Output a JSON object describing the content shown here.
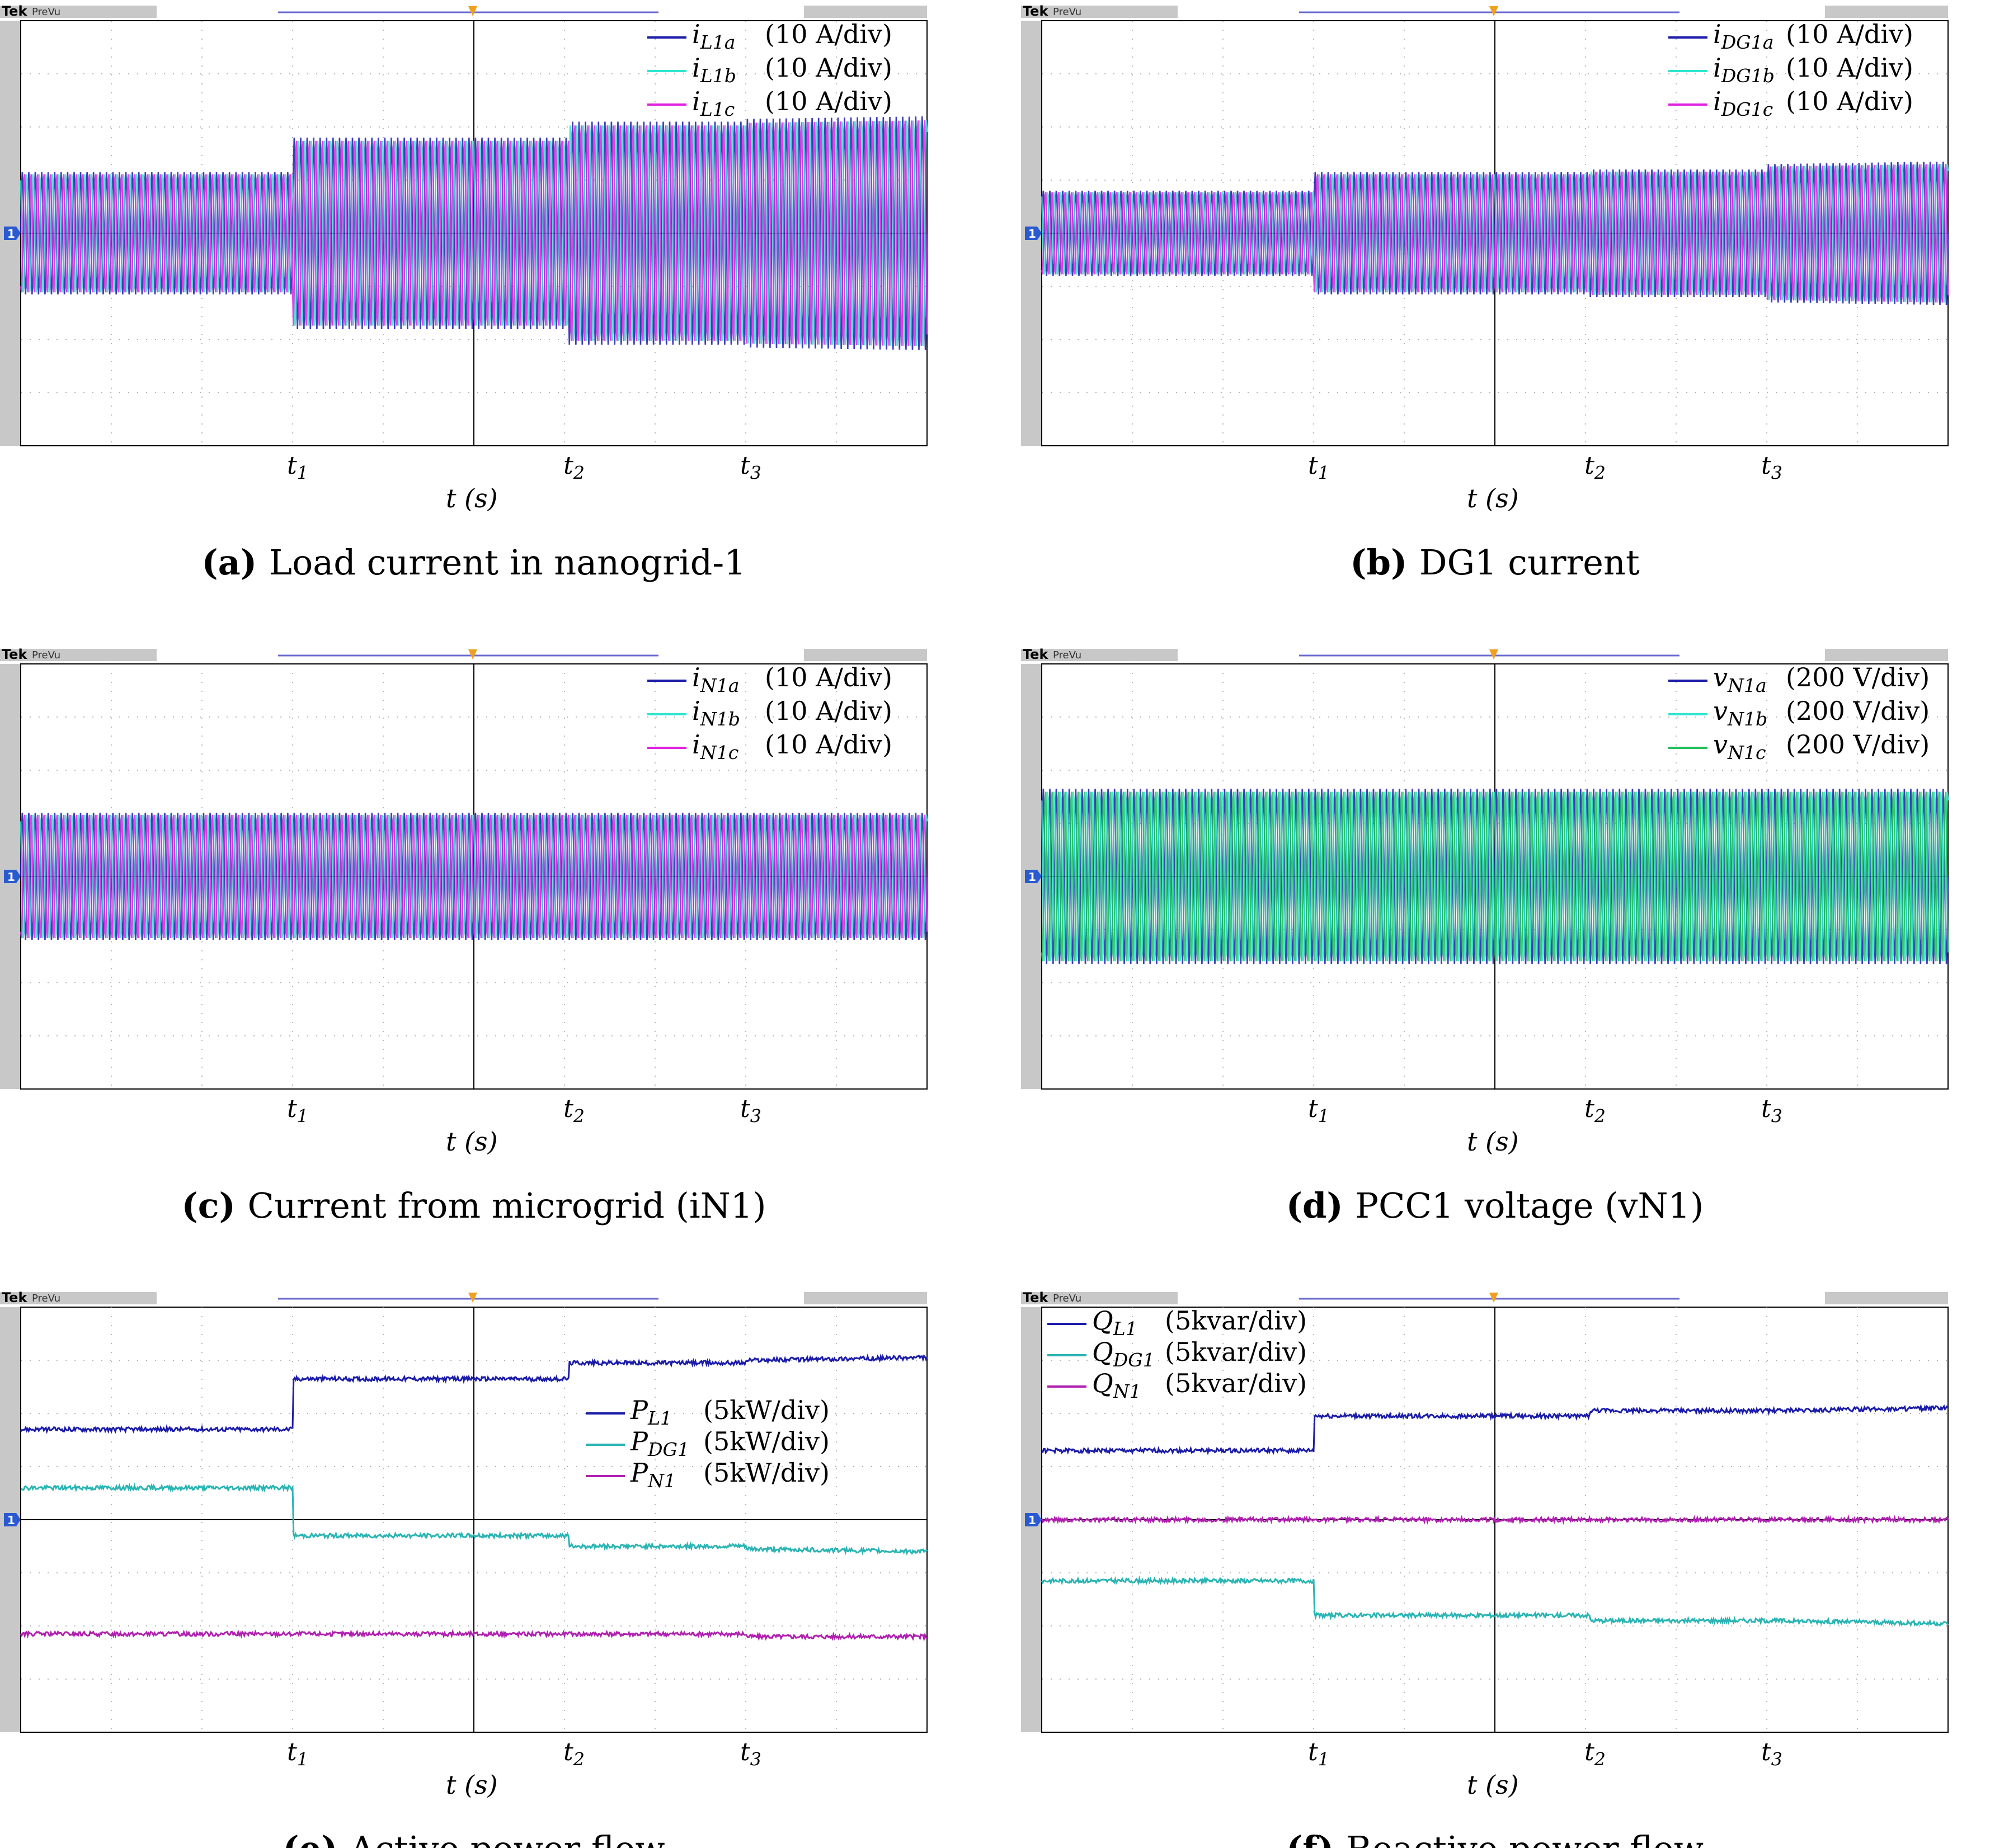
{
  "panels": [
    {
      "id": "a",
      "scope_brand": "Tek",
      "scope_mode": "PreVu",
      "caption_letter": "(a)",
      "caption_text": "Load current in nanogrid-1",
      "xlabel": "t (s)",
      "ticks": [
        "t1",
        "t2",
        "t3"
      ],
      "ground_marker": "1",
      "legend": [
        {
          "label": "iL1a",
          "scale": "(10 A/div)",
          "color": "#1c1caa"
        },
        {
          "label": "iL1b",
          "scale": "(10 A/div)",
          "color": "#2ee6d0"
        },
        {
          "label": "iL1c",
          "scale": "(10 A/div)",
          "color": "#e022e0"
        }
      ]
    },
    {
      "id": "b",
      "scope_brand": "Tek",
      "scope_mode": "PreVu",
      "caption_letter": "(b)",
      "caption_text": "DG1 current",
      "xlabel": "t (s)",
      "ticks": [
        "t1",
        "t2",
        "t3"
      ],
      "ground_marker": "1",
      "legend": [
        {
          "label": "iDG1a",
          "scale": "(10 A/div)",
          "color": "#1c1caa"
        },
        {
          "label": "iDG1b",
          "scale": "(10 A/div)",
          "color": "#2ee6d0"
        },
        {
          "label": "iDG1c",
          "scale": "(10 A/div)",
          "color": "#e022e0"
        }
      ]
    },
    {
      "id": "c",
      "scope_brand": "Tek",
      "scope_mode": "PreVu",
      "caption_letter": "(c)",
      "caption_text": "Current from microgrid (iN1)",
      "xlabel": "t (s)",
      "ticks": [
        "t1",
        "t2",
        "t3"
      ],
      "ground_marker": "1",
      "legend": [
        {
          "label": "iN1a",
          "scale": "(10 A/div)",
          "color": "#1c1caa"
        },
        {
          "label": "iN1b",
          "scale": "(10 A/div)",
          "color": "#2ee6d0"
        },
        {
          "label": "iN1c",
          "scale": "(10 A/div)",
          "color": "#e022e0"
        }
      ]
    },
    {
      "id": "d",
      "scope_brand": "Tek",
      "scope_mode": "PreVu",
      "caption_letter": "(d)",
      "caption_text": "PCC1 voltage (vN1)",
      "xlabel": "t (s)",
      "ticks": [
        "t1",
        "t2",
        "t3"
      ],
      "ground_marker": "1",
      "legend": [
        {
          "label": "vN1a",
          "scale": "(200 V/div)",
          "color": "#1c1caa"
        },
        {
          "label": "vN1b",
          "scale": "(200 V/div)",
          "color": "#2ee6d0"
        },
        {
          "label": "vN1c",
          "scale": "(200 V/div)",
          "color": "#22c05a"
        }
      ]
    },
    {
      "id": "e",
      "scope_brand": "Tek",
      "scope_mode": "PreVu",
      "caption_letter": "(e)",
      "caption_text": "Active power flow",
      "xlabel": "t (s)",
      "ticks": [
        "t1",
        "t2",
        "t3"
      ],
      "ground_marker": "1",
      "legend": [
        {
          "label": "PL1",
          "scale": "(5kW/div)",
          "color": "#1c1caa"
        },
        {
          "label": "PDG1",
          "scale": "(5kW/div)",
          "color": "#2ab4b4"
        },
        {
          "label": "PN1",
          "scale": "(5kW/div)",
          "color": "#b020b0"
        }
      ]
    },
    {
      "id": "f",
      "scope_brand": "Tek",
      "scope_mode": "PreVu",
      "caption_letter": "(f)",
      "caption_text": "Reactive power flow",
      "xlabel": "t (s)",
      "ticks": [
        "t1",
        "t2",
        "t3"
      ],
      "ground_marker": "1",
      "legend": [
        {
          "label": "QL1",
          "scale": "(5kvar/div)",
          "color": "#1c1caa"
        },
        {
          "label": "QDG1",
          "scale": "(5kvar/div)",
          "color": "#2ab4b4"
        },
        {
          "label": "QN1",
          "scale": "(5kvar/div)",
          "color": "#b020b0"
        }
      ]
    }
  ],
  "chart_data": [
    {
      "panel": "a",
      "type": "line",
      "x_unit": "div",
      "y_unit": "div",
      "xlim": [
        0,
        10
      ],
      "ylim": [
        -4,
        4
      ],
      "grid": true,
      "legend_position": "top-right",
      "events": {
        "t1": 3.0,
        "t2": 6.05,
        "t3": 8.0
      },
      "series": [
        {
          "name": "iL1a",
          "style": "sine-envelope",
          "phase": 0,
          "envelope": {
            "x": [
              0,
              3.0,
              3.0,
              6.05,
              6.05,
              8.0,
              8.0,
              10
            ],
            "amp": [
              1.15,
              1.15,
              1.8,
              1.8,
              2.1,
              2.1,
              2.15,
              2.2
            ]
          }
        },
        {
          "name": "iL1b",
          "style": "sine-envelope",
          "phase": 2.094,
          "envelope": {
            "x": [
              0,
              3.0,
              3.0,
              6.05,
              6.05,
              8.0,
              8.0,
              10
            ],
            "amp": [
              1.15,
              1.15,
              1.8,
              1.8,
              2.1,
              2.1,
              2.15,
              2.2
            ]
          }
        },
        {
          "name": "iL1c",
          "style": "sine-envelope",
          "phase": 4.189,
          "envelope": {
            "x": [
              0,
              3.0,
              3.0,
              6.05,
              6.05,
              8.0,
              8.0,
              10
            ],
            "amp": [
              1.15,
              1.15,
              1.8,
              1.8,
              2.1,
              2.1,
              2.15,
              2.2
            ]
          }
        }
      ]
    },
    {
      "panel": "b",
      "type": "line",
      "x_unit": "div",
      "y_unit": "div",
      "xlim": [
        0,
        10
      ],
      "ylim": [
        -4,
        4
      ],
      "grid": true,
      "legend_position": "top-right",
      "events": {
        "t1": 3.0,
        "t2": 6.05,
        "t3": 8.0
      },
      "series": [
        {
          "name": "iDG1a",
          "style": "sine-envelope",
          "phase": 0,
          "envelope": {
            "x": [
              0,
              3.0,
              3.0,
              6.05,
              6.05,
              8.0,
              8.0,
              10
            ],
            "amp": [
              0.8,
              0.8,
              1.15,
              1.15,
              1.2,
              1.2,
              1.3,
              1.35
            ]
          }
        },
        {
          "name": "iDG1b",
          "style": "sine-envelope",
          "phase": 2.094,
          "envelope": {
            "x": [
              0,
              3.0,
              3.0,
              6.05,
              6.05,
              8.0,
              8.0,
              10
            ],
            "amp": [
              0.8,
              0.8,
              1.15,
              1.15,
              1.2,
              1.2,
              1.3,
              1.35
            ]
          }
        },
        {
          "name": "iDG1c",
          "style": "sine-envelope",
          "phase": 4.189,
          "envelope": {
            "x": [
              0,
              3.0,
              3.0,
              6.05,
              6.05,
              8.0,
              8.0,
              10
            ],
            "amp": [
              0.8,
              0.8,
              1.15,
              1.15,
              1.2,
              1.2,
              1.3,
              1.35
            ]
          }
        }
      ]
    },
    {
      "panel": "c",
      "type": "line",
      "x_unit": "div",
      "y_unit": "div",
      "xlim": [
        0,
        10
      ],
      "ylim": [
        -4,
        4
      ],
      "grid": true,
      "legend_position": "top-right",
      "events": {
        "t1": 3.0,
        "t2": 6.05,
        "t3": 8.0
      },
      "series": [
        {
          "name": "iN1a",
          "style": "sine-envelope",
          "phase": 0,
          "envelope": {
            "x": [
              0,
              10
            ],
            "amp": [
              1.2,
              1.2
            ]
          }
        },
        {
          "name": "iN1b",
          "style": "sine-envelope",
          "phase": 2.094,
          "envelope": {
            "x": [
              0,
              10
            ],
            "amp": [
              1.2,
              1.2
            ]
          }
        },
        {
          "name": "iN1c",
          "style": "sine-envelope",
          "phase": 4.189,
          "envelope": {
            "x": [
              0,
              10
            ],
            "amp": [
              1.2,
              1.2
            ]
          }
        }
      ]
    },
    {
      "panel": "d",
      "type": "line",
      "x_unit": "div",
      "y_unit": "div",
      "xlim": [
        0,
        10
      ],
      "ylim": [
        -4,
        4
      ],
      "grid": true,
      "legend_position": "top-right",
      "events": {
        "t1": 3.0,
        "t2": 6.05,
        "t3": 8.0
      },
      "series": [
        {
          "name": "vN1a",
          "style": "sine-envelope",
          "phase": 0,
          "envelope": {
            "x": [
              0,
              10
            ],
            "amp": [
              1.65,
              1.65
            ]
          }
        },
        {
          "name": "vN1b",
          "style": "sine-envelope",
          "phase": 2.094,
          "envelope": {
            "x": [
              0,
              10
            ],
            "amp": [
              1.65,
              1.65
            ]
          }
        },
        {
          "name": "vN1c",
          "style": "sine-envelope",
          "phase": 4.189,
          "envelope": {
            "x": [
              0,
              10
            ],
            "amp": [
              1.65,
              1.65
            ]
          }
        }
      ]
    },
    {
      "panel": "e",
      "type": "line",
      "x_unit": "div",
      "y_unit": "div",
      "xlim": [
        0,
        10
      ],
      "ylim": [
        -4,
        4
      ],
      "grid": true,
      "legend_position": "right",
      "events": {
        "t1": 3.0,
        "t2": 6.05,
        "t3": 8.0
      },
      "series": [
        {
          "name": "PL1",
          "style": "step",
          "x": [
            0,
            3.0,
            3.0,
            6.05,
            6.05,
            8.0,
            8.0,
            10
          ],
          "y": [
            1.7,
            1.7,
            2.65,
            2.65,
            2.95,
            2.95,
            3.0,
            3.05
          ]
        },
        {
          "name": "PDG1",
          "style": "step",
          "x": [
            0,
            3.0,
            3.0,
            6.05,
            6.05,
            8.0,
            8.0,
            10
          ],
          "y": [
            0.6,
            0.6,
            -0.3,
            -0.3,
            -0.5,
            -0.5,
            -0.55,
            -0.6
          ]
        },
        {
          "name": "PN1",
          "style": "step",
          "x": [
            0,
            8.0,
            8.0,
            10
          ],
          "y": [
            -2.15,
            -2.15,
            -2.2,
            -2.2
          ]
        }
      ]
    },
    {
      "panel": "f",
      "type": "line",
      "x_unit": "div",
      "y_unit": "div",
      "xlim": [
        0,
        10
      ],
      "ylim": [
        -4,
        4
      ],
      "grid": true,
      "legend_position": "top-left",
      "events": {
        "t1": 3.0,
        "t2": 6.05,
        "t3": 8.0
      },
      "series": [
        {
          "name": "QL1",
          "style": "step",
          "x": [
            0,
            3.0,
            3.0,
            6.05,
            6.05,
            8.0,
            8.0,
            10
          ],
          "y": [
            1.3,
            1.3,
            1.95,
            1.95,
            2.05,
            2.05,
            2.05,
            2.1
          ]
        },
        {
          "name": "QDG1",
          "style": "step",
          "x": [
            0,
            3.0,
            3.0,
            6.05,
            6.05,
            8.0,
            8.0,
            10
          ],
          "y": [
            -1.15,
            -1.15,
            -1.8,
            -1.8,
            -1.9,
            -1.9,
            -1.9,
            -1.95
          ]
        },
        {
          "name": "QN1",
          "style": "step",
          "x": [
            0,
            10
          ],
          "y": [
            0.0,
            0.0
          ]
        }
      ]
    }
  ]
}
